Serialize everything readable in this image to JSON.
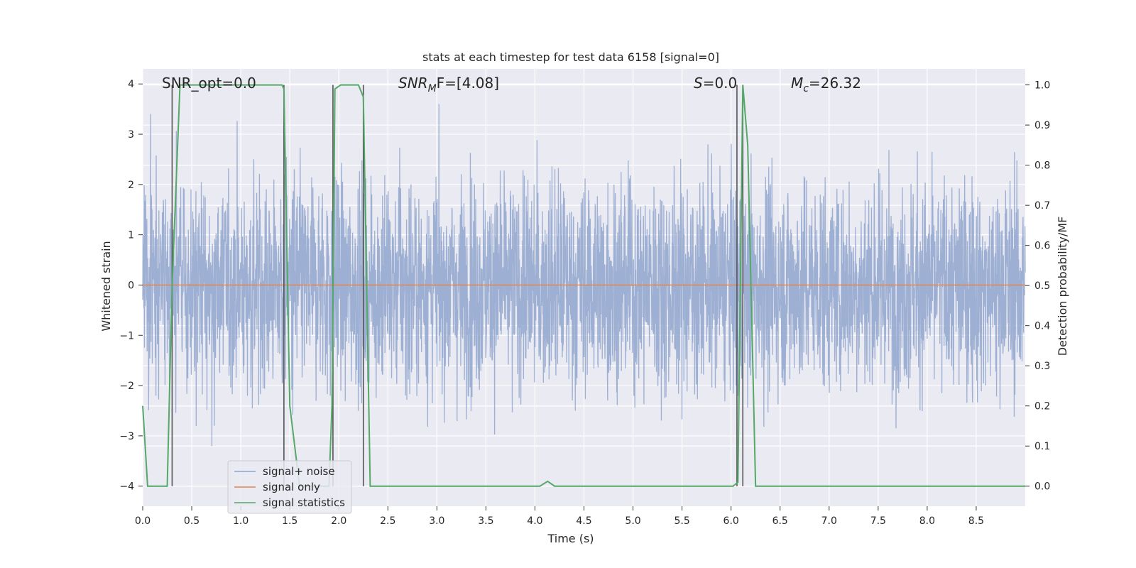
{
  "chart_data": {
    "type": "line",
    "title": "stats at each timestep for test data 6158 [signal=0]",
    "xlabel": "Time (s)",
    "ylabel": "Whitened strain",
    "y2label": "Detection probability/MF",
    "xlim": [
      0.0,
      9.0
    ],
    "ylim": [
      -4.4,
      4.3
    ],
    "y2lim": [
      -0.05,
      1.04
    ],
    "x_ticks": [
      "0.0",
      "0.5",
      "1.0",
      "1.5",
      "2.0",
      "2.5",
      "3.0",
      "3.5",
      "4.0",
      "4.5",
      "5.0",
      "5.5",
      "6.0",
      "6.5",
      "7.0",
      "7.5",
      "8.0",
      "8.5"
    ],
    "y_ticks": [
      "4",
      "3",
      "2",
      "1",
      "0",
      "−1",
      "−2",
      "−3",
      "−4"
    ],
    "y2_ticks": [
      "1.0",
      "0.9",
      "0.8",
      "0.7",
      "0.6",
      "0.5",
      "0.4",
      "0.3",
      "0.2",
      "0.1",
      "0.0"
    ],
    "annotations": {
      "snr_opt": "SNR_opt=0.0",
      "snr_mf_main": "SNR",
      "snr_mf_sub": "M",
      "snr_mf_rest": "F=[4.08]",
      "s_main": "S",
      "s_rest": "=0.0",
      "mc_main": "M",
      "mc_sub": "c",
      "mc_rest": "=26.32"
    },
    "legend": {
      "position": "lower-left",
      "entries": [
        "signal+ noise",
        "signal only",
        "signal statistics"
      ]
    },
    "colors": {
      "noise": "#8fa4cc",
      "signal": "#dd8452",
      "stats": "#55a868",
      "vline": "#555555",
      "bg": "#eaeaf2",
      "grid": "#ffffff"
    },
    "vertical_lines_x": [
      0.3,
      1.44,
      1.94,
      2.25,
      6.06,
      6.12
    ],
    "noise_summary": {
      "min": -4.05,
      "max": 3.6,
      "band": [
        -1.6,
        1.6
      ]
    },
    "series": [
      {
        "name": "signal statistics",
        "axis": "right",
        "x": [
          0.0,
          0.05,
          0.25,
          0.3,
          0.38,
          1.42,
          1.44,
          1.5,
          1.55,
          1.6,
          1.9,
          1.93,
          1.96,
          2.02,
          2.2,
          2.25,
          2.32,
          2.38,
          4.05,
          4.13,
          4.2,
          6.02,
          6.07,
          6.12,
          6.17,
          6.25,
          9.0
        ],
        "y": [
          0.2,
          0.0,
          0.0,
          0.5,
          1.0,
          1.0,
          0.99,
          0.2,
          0.1,
          0.0,
          0.0,
          0.2,
          0.99,
          1.0,
          1.0,
          0.97,
          0.0,
          0.0,
          0.0,
          0.012,
          0.0,
          0.0,
          0.01,
          1.0,
          0.85,
          0.0,
          0.0
        ]
      },
      {
        "name": "signal only",
        "axis": "left",
        "x": [
          0.0,
          9.0
        ],
        "y": [
          0.0,
          0.0
        ]
      }
    ]
  }
}
